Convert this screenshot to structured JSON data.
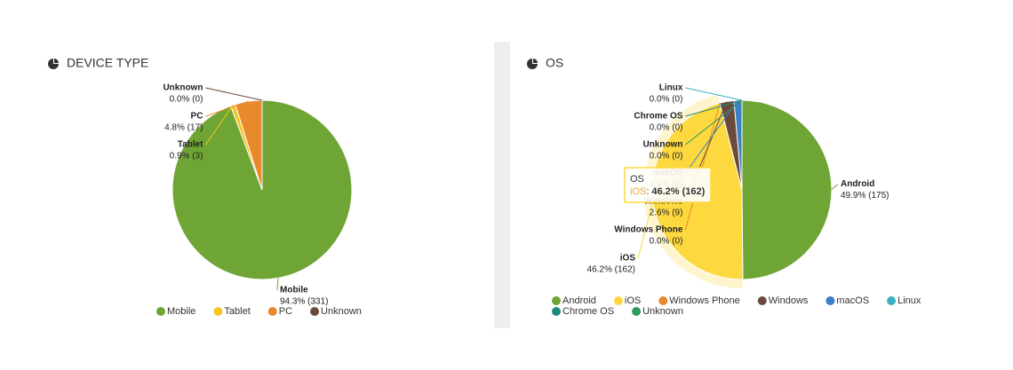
{
  "chart_data": [
    {
      "type": "pie",
      "title": "DEVICE TYPE",
      "categories": [
        "Mobile",
        "Tablet",
        "PC",
        "Unknown"
      ],
      "values": [
        331,
        3,
        17,
        0
      ],
      "value_labels": [
        "94.3% (331)",
        "0.9% (3)",
        "4.8% (17)",
        "0.0% (0)"
      ],
      "colors": [
        "#6fa534",
        "#f7c525",
        "#e8892b",
        "#6b4a3b"
      ]
    },
    {
      "type": "pie",
      "title": "OS",
      "categories": [
        "Android",
        "iOS",
        "Windows Phone",
        "Windows",
        "macOS",
        "Linux",
        "Chrome OS",
        "Unknown"
      ],
      "values": [
        175,
        162,
        0,
        9,
        5,
        0,
        0,
        0
      ],
      "value_labels": [
        "49.9% (175)",
        "46.2% (162)",
        "0.0% (0)",
        "2.6% (9)",
        "1.4% (5)",
        "0.0% (0)",
        "0.0% (0)",
        "0.0% (0)"
      ],
      "colors": [
        "#6fa534",
        "#fdd83f",
        "#e8892b",
        "#6b4a3b",
        "#3b7fc4",
        "#3aafc2",
        "#1f8a7c",
        "#2e9a5c"
      ]
    }
  ]
}
